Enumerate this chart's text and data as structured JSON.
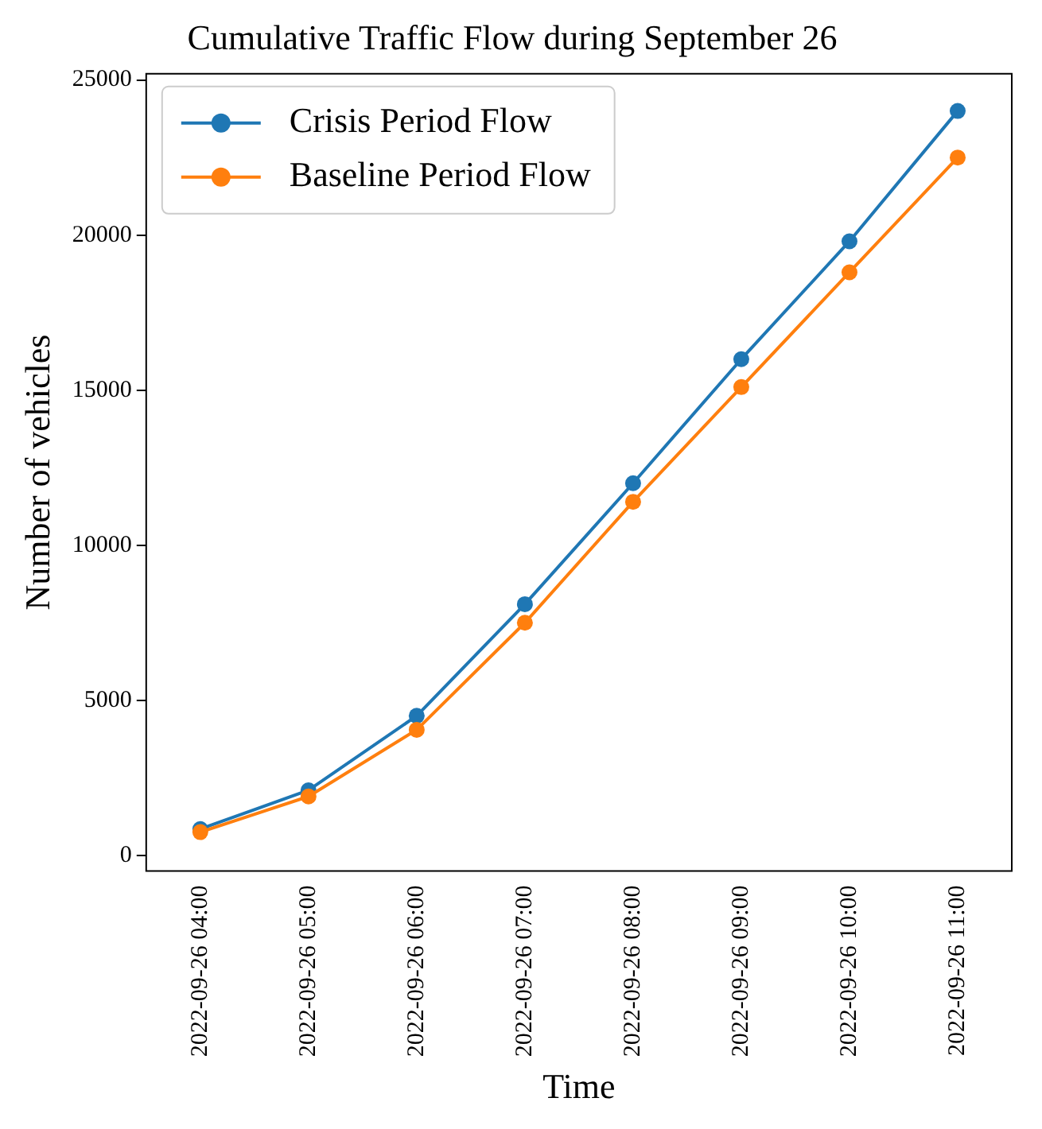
{
  "chart_data": {
    "type": "line",
    "title": "Cumulative Traffic Flow during September 26",
    "xlabel": "Time",
    "ylabel": "Number of vehicles",
    "categories": [
      "2022-09-26 04:00",
      "2022-09-26 05:00",
      "2022-09-26 06:00",
      "2022-09-26 07:00",
      "2022-09-26 08:00",
      "2022-09-26 09:00",
      "2022-09-26 10:00",
      "2022-09-26 11:00"
    ],
    "series": [
      {
        "name": "Crisis Period Flow",
        "color": "#1f77b4",
        "values": [
          850,
          2100,
          4500,
          8100,
          12000,
          16000,
          19800,
          24000
        ]
      },
      {
        "name": "Baseline Period Flow",
        "color": "#ff7f0e",
        "values": [
          750,
          1900,
          4050,
          7500,
          11400,
          15100,
          18800,
          22500
        ]
      }
    ],
    "ylim": [
      -500,
      25200
    ],
    "yticks": [
      0,
      5000,
      10000,
      15000,
      20000,
      25000
    ],
    "grid": false,
    "legend": "top left",
    "marker": "circle",
    "line_style": "solid"
  }
}
